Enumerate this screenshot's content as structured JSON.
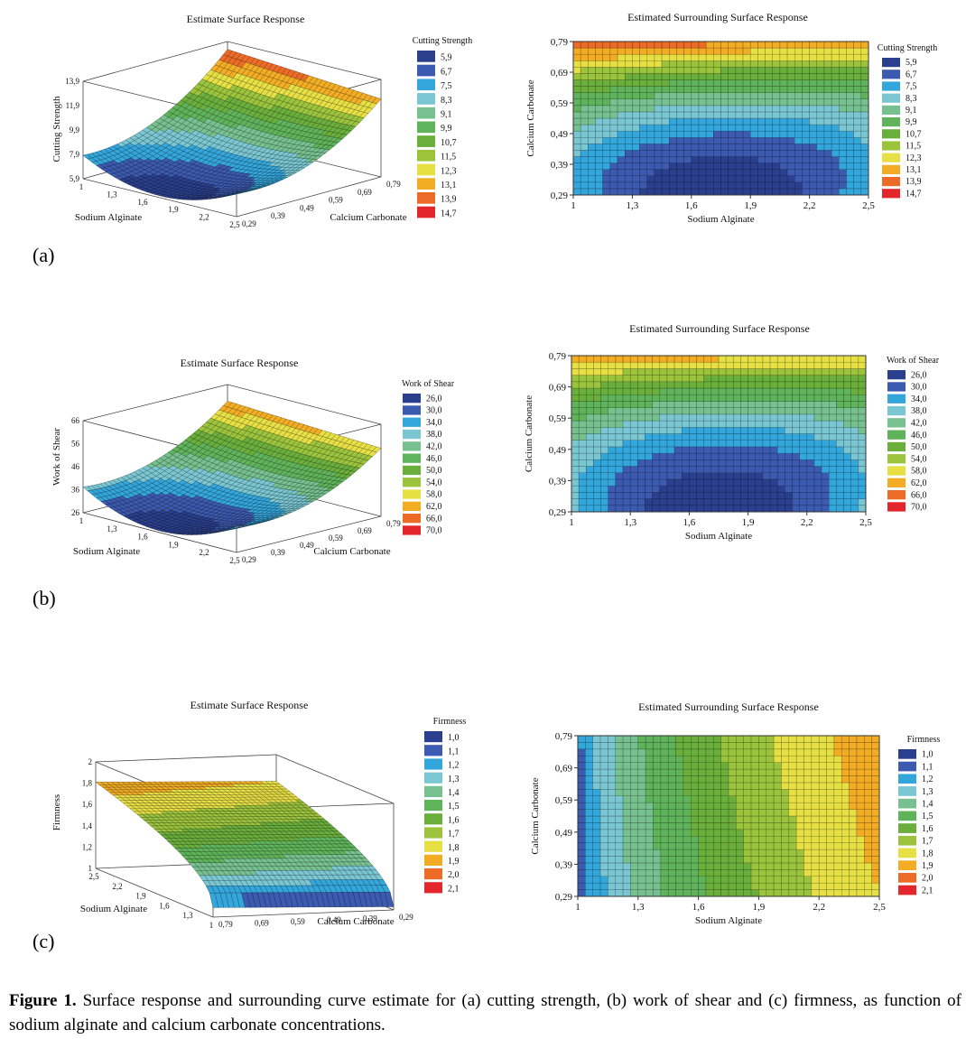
{
  "figure": {
    "caption_title": "Figure 1.",
    "caption_text": "Surface response and surrounding curve estimate for (a) cutting strength, (b) work of shear and (c) firmness, as function of sodium alginate and calcium carbonate concentrations."
  },
  "chart_data": [
    {
      "id": "a-surface",
      "type": "surface",
      "panel_label": "(a)",
      "title": "Estimate Surface Response",
      "xlabel": "Sodium Alginate",
      "ylabel": "Calcium Carbonate",
      "zlabel": "Cutting Strength",
      "x_ticks": [
        "1",
        "1,3",
        "1,6",
        "1,9",
        "2,2",
        "2,5"
      ],
      "y_ticks": [
        "0,29",
        "0,39",
        "0,49",
        "0,59",
        "0,69",
        "0,79"
      ],
      "z_ticks": [
        "5,9",
        "7,9",
        "9,9",
        "11,9",
        "13,9"
      ],
      "xlim": [
        1,
        2.5
      ],
      "ylim": [
        0.29,
        0.79
      ],
      "zlim": [
        5.9,
        13.9
      ],
      "legend_title": "Cutting Strength",
      "legend_values": [
        "5,9",
        "6,7",
        "7,5",
        "8,3",
        "9,1",
        "9,9",
        "10,7",
        "11,5",
        "12,3",
        "13,1",
        "13,9",
        "14,7"
      ]
    },
    {
      "id": "a-contour",
      "type": "heatmap",
      "title": "Estimated Surrounding Surface Response",
      "xlabel": "Sodium Alginate",
      "ylabel": "Calcium Carbonate",
      "x_ticks": [
        "1",
        "1,3",
        "1,6",
        "1,9",
        "2,2",
        "2,5"
      ],
      "y_ticks": [
        "0,29",
        "0,39",
        "0,49",
        "0,59",
        "0,69",
        "0,79"
      ],
      "xlim": [
        1,
        2.5
      ],
      "ylim": [
        0.29,
        0.79
      ],
      "legend_title": "Cutting Strength",
      "legend_values": [
        "5,9",
        "6,7",
        "7,5",
        "8,3",
        "9,1",
        "9,9",
        "10,7",
        "11,5",
        "12,3",
        "13,1",
        "13,9",
        "14,7"
      ]
    },
    {
      "id": "b-surface",
      "type": "surface",
      "panel_label": "(b)",
      "title": "Estimate Surface Response",
      "xlabel": "Sodium Alginate",
      "ylabel": "Calcium Carbonate",
      "zlabel": "Work of Shear",
      "x_ticks": [
        "1",
        "1,3",
        "1,6",
        "1,9",
        "2,2",
        "2,5"
      ],
      "y_ticks": [
        "0,29",
        "0,39",
        "0,49",
        "0,59",
        "0,69",
        "0,79"
      ],
      "z_ticks": [
        "26",
        "36",
        "46",
        "56",
        "66"
      ],
      "xlim": [
        1,
        2.5
      ],
      "ylim": [
        0.29,
        0.79
      ],
      "zlim": [
        26,
        66
      ],
      "legend_title": "Work of Shear",
      "legend_values": [
        "26,0",
        "30,0",
        "34,0",
        "38,0",
        "42,0",
        "46,0",
        "50,0",
        "54,0",
        "58,0",
        "62,0",
        "66,0",
        "70,0"
      ]
    },
    {
      "id": "b-contour",
      "type": "heatmap",
      "title": "Estimated Surrounding Surface Response",
      "xlabel": "Sodium Alginate",
      "ylabel": "Calcium Carbonate",
      "x_ticks": [
        "1",
        "1,3",
        "1,6",
        "1,9",
        "2,2",
        "2,5"
      ],
      "y_ticks": [
        "0,29",
        "0,39",
        "0,49",
        "0,59",
        "0,69",
        "0,79"
      ],
      "xlim": [
        1,
        2.5
      ],
      "ylim": [
        0.29,
        0.79
      ],
      "legend_title": "Work of Shear",
      "legend_values": [
        "26,0",
        "30,0",
        "34,0",
        "38,0",
        "42,0",
        "46,0",
        "50,0",
        "54,0",
        "58,0",
        "62,0",
        "66,0",
        "70,0"
      ]
    },
    {
      "id": "c-surface",
      "type": "surface",
      "panel_label": "(c)",
      "title": "Estimate Surface Response",
      "xlabel": "Sodium Alginate",
      "ylabel": "Calcium Carbonate",
      "zlabel": "Firmness",
      "x_ticks": [
        "2,5",
        "2,2",
        "1,9",
        "1,6",
        "1,3",
        "1"
      ],
      "y_ticks": [
        "0,79",
        "0,69",
        "0,59",
        "0,49",
        "0,39",
        "0,29"
      ],
      "z_ticks": [
        "1",
        "1,2",
        "1,4",
        "1,6",
        "1,8",
        "2"
      ],
      "xlim": [
        1,
        2.5
      ],
      "ylim": [
        0.29,
        0.79
      ],
      "zlim": [
        1,
        2
      ],
      "legend_title": "Firmness",
      "legend_values": [
        "1,0",
        "1,1",
        "1,2",
        "1,3",
        "1,4",
        "1,5",
        "1,6",
        "1,7",
        "1,8",
        "1,9",
        "2,0",
        "2,1"
      ]
    },
    {
      "id": "c-contour",
      "type": "heatmap",
      "title": "Estimated Surrounding Surface Response",
      "xlabel": "Sodium Alginate",
      "ylabel": "Calcium Carbonate",
      "x_ticks": [
        "1",
        "1,3",
        "1,6",
        "1,9",
        "2,2",
        "2,5"
      ],
      "y_ticks": [
        "0,29",
        "0,39",
        "0,49",
        "0,59",
        "0,69",
        "0,79"
      ],
      "xlim": [
        1,
        2.5
      ],
      "ylim": [
        0.29,
        0.79
      ],
      "legend_title": "Firmness",
      "legend_values": [
        "1,0",
        "1,1",
        "1,2",
        "1,3",
        "1,4",
        "1,5",
        "1,6",
        "1,7",
        "1,8",
        "1,9",
        "2,0",
        "2,1"
      ]
    }
  ],
  "palette": [
    "#2b3f8f",
    "#3b5ab0",
    "#33a7dc",
    "#7ac7d3",
    "#77c08f",
    "#5fb35a",
    "#6aaf3c",
    "#9bc43c",
    "#e7e044",
    "#f3ad24",
    "#ec6b27",
    "#e3262b"
  ]
}
